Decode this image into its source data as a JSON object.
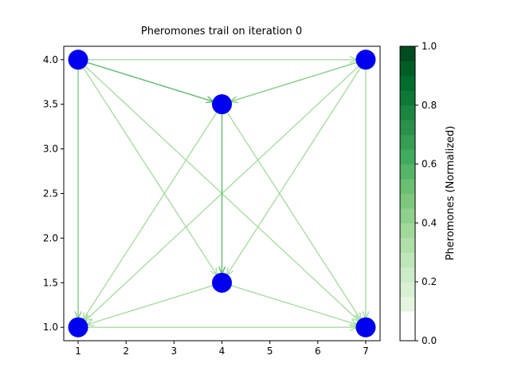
{
  "chart_data": {
    "type": "network",
    "title": "Pheromones trail on iteration 0",
    "xlim": [
      0.7,
      7.3
    ],
    "ylim": [
      0.85,
      4.15
    ],
    "x_ticks": [
      "1",
      "2",
      "3",
      "4",
      "5",
      "6",
      "7"
    ],
    "y_ticks": [
      "1.0",
      "1.5",
      "2.0",
      "2.5",
      "3.0",
      "3.5",
      "4.0"
    ],
    "node_color": "#0000ee",
    "nodes": [
      {
        "x": 1,
        "y": 4.0
      },
      {
        "x": 7,
        "y": 4.0
      },
      {
        "x": 4,
        "y": 3.5
      },
      {
        "x": 4,
        "y": 1.5
      },
      {
        "x": 1,
        "y": 1.0
      },
      {
        "x": 7,
        "y": 1.0
      }
    ],
    "edges": [
      {
        "from": 0,
        "to": 1,
        "pheromone": 0.2
      },
      {
        "from": 0,
        "to": 2,
        "pheromone": 0.4
      },
      {
        "from": 0,
        "to": 3,
        "pheromone": 0.2
      },
      {
        "from": 0,
        "to": 4,
        "pheromone": 0.3
      },
      {
        "from": 0,
        "to": 5,
        "pheromone": 0.2
      },
      {
        "from": 1,
        "to": 2,
        "pheromone": 0.3
      },
      {
        "from": 1,
        "to": 3,
        "pheromone": 0.2
      },
      {
        "from": 1,
        "to": 4,
        "pheromone": 0.2
      },
      {
        "from": 1,
        "to": 5,
        "pheromone": 0.2
      },
      {
        "from": 2,
        "to": 3,
        "pheromone": 0.4
      },
      {
        "from": 2,
        "to": 4,
        "pheromone": 0.2
      },
      {
        "from": 2,
        "to": 5,
        "pheromone": 0.2
      },
      {
        "from": 3,
        "to": 4,
        "pheromone": 0.2
      },
      {
        "from": 3,
        "to": 5,
        "pheromone": 0.2
      },
      {
        "from": 4,
        "to": 5,
        "pheromone": 0.2
      }
    ],
    "colorbar": {
      "label": "Pheromones (Normalized)",
      "ticks": [
        "0.0",
        "0.2",
        "0.4",
        "0.6",
        "0.8",
        "1.0"
      ],
      "range": [
        0,
        1
      ],
      "colormap": "Greens",
      "levels": 20
    }
  }
}
